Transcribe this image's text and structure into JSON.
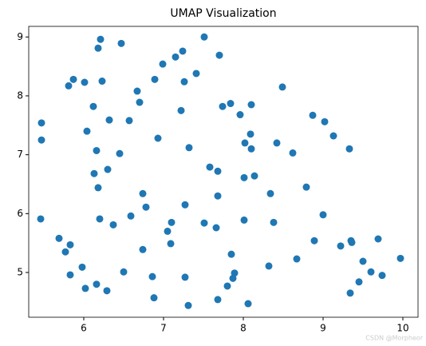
{
  "chart_data": {
    "type": "scatter",
    "title": "UMAP Visualization",
    "color": "#1f77b4",
    "x": [
      5.47,
      5.47,
      5.46,
      5.69,
      5.77,
      5.83,
      5.83,
      5.98,
      6.02,
      6.16,
      6.29,
      5.81,
      5.87,
      6.01,
      6.21,
      6.18,
      6.23,
      6.12,
      6.04,
      6.32,
      6.16,
      6.13,
      6.3,
      6.18,
      6.2,
      6.37,
      6.47,
      6.45,
      6.57,
      6.67,
      6.7,
      6.59,
      6.74,
      6.78,
      6.74,
      6.5,
      6.86,
      6.88,
      6.89,
      6.99,
      7.15,
      7.24,
      7.51,
      7.7,
      7.41,
      7.26,
      7.22,
      6.93,
      7.32,
      7.05,
      7.1,
      7.09,
      7.27,
      7.27,
      7.31,
      7.58,
      7.68,
      7.68,
      7.51,
      7.66,
      7.74,
      7.84,
      7.96,
      8.1,
      8.49,
      8.09,
      8.02,
      8.1,
      8.01,
      8.14,
      8.42,
      8.62,
      8.01,
      7.85,
      7.89,
      7.87,
      7.8,
      7.68,
      8.06,
      8.34,
      8.38,
      8.32,
      8.67,
      8.79,
      8.87,
      9.02,
      9.13,
      9.33,
      9.0,
      8.89,
      9.22,
      9.35,
      9.36,
      9.69,
      9.5,
      9.6,
      9.45,
      9.34,
      9.74,
      9.97
    ],
    "y": [
      7.54,
      7.25,
      5.91,
      5.58,
      5.35,
      5.47,
      4.96,
      5.09,
      4.73,
      4.8,
      4.69,
      8.17,
      8.28,
      8.23,
      8.96,
      8.81,
      8.25,
      7.82,
      7.4,
      7.59,
      7.07,
      6.68,
      6.75,
      6.44,
      5.91,
      5.81,
      8.89,
      7.02,
      7.58,
      8.08,
      7.89,
      5.96,
      6.34,
      6.11,
      5.39,
      5.01,
      4.93,
      4.57,
      8.28,
      8.54,
      8.66,
      8.76,
      9.0,
      8.69,
      8.38,
      8.24,
      7.75,
      7.28,
      7.12,
      5.7,
      5.85,
      5.49,
      6.15,
      4.92,
      4.44,
      6.79,
      6.72,
      6.3,
      5.84,
      5.76,
      7.82,
      7.87,
      7.68,
      7.85,
      8.15,
      7.35,
      7.2,
      7.1,
      6.61,
      6.64,
      7.2,
      7.03,
      5.89,
      5.31,
      4.99,
      4.9,
      4.77,
      4.54,
      4.47,
      6.34,
      5.85,
      5.11,
      5.23,
      6.45,
      7.67,
      7.56,
      7.32,
      7.1,
      5.98,
      5.54,
      5.45,
      5.54,
      5.51,
      5.57,
      5.19,
      5.01,
      4.84,
      4.65,
      4.95,
      5.24
    ],
    "xlim": [
      5.31,
      10.19
    ],
    "ylim": [
      4.24,
      9.18
    ],
    "xticks": [
      6,
      7,
      8,
      9,
      10
    ],
    "yticks": [
      5,
      6,
      7,
      8,
      9
    ],
    "watermark": "CSDN @Morpheor"
  }
}
